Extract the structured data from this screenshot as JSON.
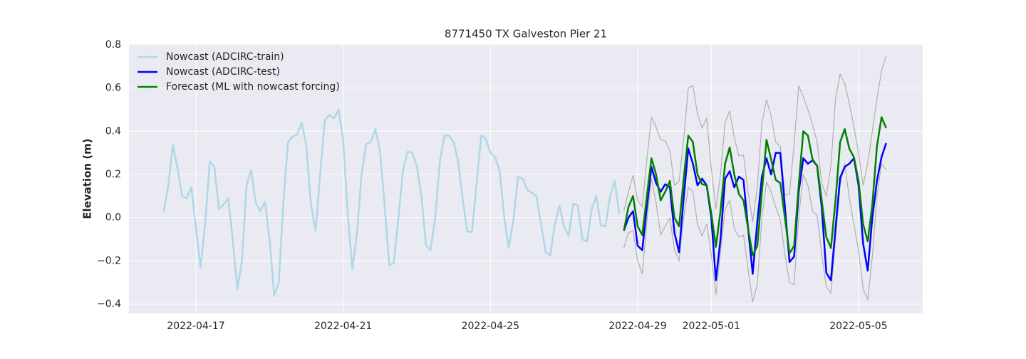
{
  "chart_data": {
    "type": "line",
    "title": "8771450 TX Galveston Pier 21",
    "ylabel": "Elevation (m)",
    "x": [
      "2022-04-16T03:00",
      "2022-04-16T06:00",
      "2022-04-16T09:00",
      "2022-04-16T12:00",
      "2022-04-16T15:00",
      "2022-04-16T18:00",
      "2022-04-16T21:00",
      "2022-04-17T00:00",
      "2022-04-17T03:00",
      "2022-04-17T06:00",
      "2022-04-17T09:00",
      "2022-04-17T12:00",
      "2022-04-17T15:00",
      "2022-04-17T18:00",
      "2022-04-17T21:00",
      "2022-04-18T00:00",
      "2022-04-18T03:00",
      "2022-04-18T06:00",
      "2022-04-18T09:00",
      "2022-04-18T12:00",
      "2022-04-18T15:00",
      "2022-04-18T18:00",
      "2022-04-18T21:00",
      "2022-04-19T00:00",
      "2022-04-19T03:00",
      "2022-04-19T06:00",
      "2022-04-19T09:00",
      "2022-04-19T12:00",
      "2022-04-19T15:00",
      "2022-04-19T18:00",
      "2022-04-19T21:00",
      "2022-04-20T00:00",
      "2022-04-20T03:00",
      "2022-04-20T06:00",
      "2022-04-20T09:00",
      "2022-04-20T12:00",
      "2022-04-20T15:00",
      "2022-04-20T18:00",
      "2022-04-20T21:00",
      "2022-04-21T00:00",
      "2022-04-21T03:00",
      "2022-04-21T06:00",
      "2022-04-21T09:00",
      "2022-04-21T12:00",
      "2022-04-21T15:00",
      "2022-04-21T18:00",
      "2022-04-21T21:00",
      "2022-04-22T00:00",
      "2022-04-22T03:00",
      "2022-04-22T06:00",
      "2022-04-22T09:00",
      "2022-04-22T12:00",
      "2022-04-22T15:00",
      "2022-04-22T18:00",
      "2022-04-22T21:00",
      "2022-04-23T00:00",
      "2022-04-23T03:00",
      "2022-04-23T06:00",
      "2022-04-23T09:00",
      "2022-04-23T12:00",
      "2022-04-23T15:00",
      "2022-04-23T18:00",
      "2022-04-23T21:00",
      "2022-04-24T00:00",
      "2022-04-24T03:00",
      "2022-04-24T06:00",
      "2022-04-24T09:00",
      "2022-04-24T12:00",
      "2022-04-24T15:00",
      "2022-04-24T18:00",
      "2022-04-24T21:00",
      "2022-04-25T00:00",
      "2022-04-25T03:00",
      "2022-04-25T06:00",
      "2022-04-25T09:00",
      "2022-04-25T12:00",
      "2022-04-25T15:00",
      "2022-04-25T18:00",
      "2022-04-25T21:00",
      "2022-04-26T00:00",
      "2022-04-26T03:00",
      "2022-04-26T06:00",
      "2022-04-26T09:00",
      "2022-04-26T12:00",
      "2022-04-26T15:00",
      "2022-04-26T18:00",
      "2022-04-26T21:00",
      "2022-04-27T00:00",
      "2022-04-27T03:00",
      "2022-04-27T06:00",
      "2022-04-27T09:00",
      "2022-04-27T12:00",
      "2022-04-27T15:00",
      "2022-04-27T18:00",
      "2022-04-27T21:00",
      "2022-04-28T00:00",
      "2022-04-28T03:00",
      "2022-04-28T06:00",
      "2022-04-28T09:00",
      "2022-04-28T12:00",
      "2022-04-28T15:00",
      "2022-04-28T18:00",
      "2022-04-28T21:00",
      "2022-04-29T00:00",
      "2022-04-29T03:00",
      "2022-04-29T06:00",
      "2022-04-29T09:00",
      "2022-04-29T12:00",
      "2022-04-29T15:00",
      "2022-04-29T18:00",
      "2022-04-29T21:00",
      "2022-04-30T00:00",
      "2022-04-30T03:00",
      "2022-04-30T06:00",
      "2022-04-30T09:00",
      "2022-04-30T12:00",
      "2022-04-30T15:00",
      "2022-04-30T18:00",
      "2022-04-30T21:00",
      "2022-05-01T00:00",
      "2022-05-01T03:00",
      "2022-05-01T06:00",
      "2022-05-01T09:00",
      "2022-05-01T12:00",
      "2022-05-01T15:00",
      "2022-05-01T18:00",
      "2022-05-01T21:00",
      "2022-05-02T00:00",
      "2022-05-02T03:00",
      "2022-05-02T06:00",
      "2022-05-02T09:00",
      "2022-05-02T12:00",
      "2022-05-02T15:00",
      "2022-05-02T18:00",
      "2022-05-02T21:00",
      "2022-05-03T00:00",
      "2022-05-03T03:00",
      "2022-05-03T06:00",
      "2022-05-03T09:00",
      "2022-05-03T12:00",
      "2022-05-03T15:00",
      "2022-05-03T18:00",
      "2022-05-03T21:00",
      "2022-05-04T00:00",
      "2022-05-04T03:00",
      "2022-05-04T06:00",
      "2022-05-04T09:00",
      "2022-05-04T12:00",
      "2022-05-04T15:00",
      "2022-05-04T18:00",
      "2022-05-04T21:00",
      "2022-05-05T00:00",
      "2022-05-05T03:00",
      "2022-05-05T06:00",
      "2022-05-05T09:00",
      "2022-05-05T12:00",
      "2022-05-05T15:00",
      "2022-05-05T18:00"
    ],
    "series": [
      {
        "color": "#b0b0b0",
        "values": [
          null,
          null,
          null,
          null,
          null,
          null,
          null,
          null,
          null,
          null,
          null,
          null,
          null,
          null,
          null,
          null,
          null,
          null,
          null,
          null,
          null,
          null,
          null,
          null,
          null,
          null,
          null,
          null,
          null,
          null,
          null,
          null,
          null,
          null,
          null,
          null,
          null,
          null,
          null,
          null,
          null,
          null,
          null,
          null,
          null,
          null,
          null,
          null,
          null,
          null,
          null,
          null,
          null,
          null,
          null,
          null,
          null,
          null,
          null,
          null,
          null,
          null,
          null,
          null,
          null,
          null,
          null,
          null,
          null,
          null,
          null,
          null,
          null,
          null,
          null,
          null,
          null,
          null,
          null,
          null,
          null,
          null,
          null,
          null,
          null,
          null,
          null,
          null,
          null,
          null,
          null,
          null,
          null,
          null,
          null,
          null,
          null,
          null,
          null,
          null,
          0.03,
          0.12,
          0.195,
          0.08,
          0.05,
          0.27,
          0.465,
          0.42,
          0.36,
          0.355,
          0.31,
          0.15,
          0.17,
          0.36,
          0.6,
          0.61,
          0.48,
          0.415,
          0.46,
          0.23,
          0.04,
          0.2,
          0.44,
          0.495,
          0.37,
          0.285,
          0.29,
          0.12,
          -0.02,
          0.14,
          0.44,
          0.545,
          0.47,
          0.35,
          0.33,
          0.105,
          0.11,
          0.34,
          0.61,
          0.56,
          0.5,
          0.43,
          0.35,
          0.16,
          0.1,
          0.24,
          0.55,
          0.665,
          0.62,
          0.53,
          0.42,
          0.3,
          0.15,
          0.25,
          0.4,
          0.55,
          0.68,
          0.75
        ]
      },
      {
        "color": "#b0b0b0",
        "values": [
          null,
          null,
          null,
          null,
          null,
          null,
          null,
          null,
          null,
          null,
          null,
          null,
          null,
          null,
          null,
          null,
          null,
          null,
          null,
          null,
          null,
          null,
          null,
          null,
          null,
          null,
          null,
          null,
          null,
          null,
          null,
          null,
          null,
          null,
          null,
          null,
          null,
          null,
          null,
          null,
          null,
          null,
          null,
          null,
          null,
          null,
          null,
          null,
          null,
          null,
          null,
          null,
          null,
          null,
          null,
          null,
          null,
          null,
          null,
          null,
          null,
          null,
          null,
          null,
          null,
          null,
          null,
          null,
          null,
          null,
          null,
          null,
          null,
          null,
          null,
          null,
          null,
          null,
          null,
          null,
          null,
          null,
          null,
          null,
          null,
          null,
          null,
          null,
          null,
          null,
          null,
          null,
          null,
          null,
          null,
          null,
          null,
          null,
          null,
          null,
          -0.14,
          -0.07,
          -0.06,
          -0.2,
          -0.26,
          -0.02,
          0.18,
          0.07,
          -0.08,
          -0.04,
          0.0,
          -0.15,
          -0.2,
          0.0,
          0.14,
          0.12,
          -0.03,
          -0.085,
          -0.03,
          -0.17,
          -0.355,
          -0.16,
          0.04,
          0.08,
          -0.05,
          -0.09,
          -0.08,
          -0.24,
          -0.39,
          -0.31,
          0.0,
          0.165,
          0.12,
          0.05,
          -0.01,
          -0.17,
          -0.3,
          -0.31,
          0.0,
          0.2,
          0.15,
          0.03,
          0.01,
          -0.17,
          -0.32,
          -0.35,
          -0.1,
          0.15,
          0.25,
          0.09,
          -0.03,
          -0.15,
          -0.33,
          -0.38,
          -0.18,
          0.1,
          0.25,
          0.22
        ]
      },
      {
        "name": "Nowcast (ADCIRC-train)",
        "color": "#add8e6",
        "values": [
          0.03,
          0.15,
          0.335,
          0.23,
          0.1,
          0.09,
          0.14,
          -0.05,
          -0.23,
          -0.03,
          0.26,
          0.235,
          0.04,
          0.06,
          0.09,
          -0.1,
          -0.33,
          -0.2,
          0.15,
          0.22,
          0.07,
          0.03,
          0.075,
          -0.1,
          -0.36,
          -0.3,
          0.07,
          0.35,
          0.375,
          0.385,
          0.44,
          0.33,
          0.06,
          -0.06,
          0.2,
          0.45,
          0.475,
          0.46,
          0.5,
          0.36,
          0.02,
          -0.24,
          -0.07,
          0.2,
          0.34,
          0.35,
          0.41,
          0.31,
          0.06,
          -0.22,
          -0.21,
          0.0,
          0.22,
          0.305,
          0.3,
          0.24,
          0.1,
          -0.13,
          -0.15,
          0.0,
          0.26,
          0.38,
          0.38,
          0.35,
          0.26,
          0.08,
          -0.065,
          -0.065,
          0.16,
          0.38,
          0.365,
          0.3,
          0.28,
          0.22,
          0.0,
          -0.14,
          -0.01,
          0.19,
          0.18,
          0.13,
          0.115,
          0.1,
          -0.03,
          -0.16,
          -0.175,
          -0.03,
          0.055,
          -0.04,
          -0.085,
          0.065,
          0.055,
          -0.1,
          -0.11,
          0.04,
          0.1,
          -0.035,
          -0.04,
          0.1,
          0.17,
          0.02,
          null,
          null,
          null,
          null,
          null,
          null,
          null,
          null,
          null,
          null,
          null,
          null,
          null,
          null,
          null,
          null,
          null,
          null,
          null,
          null,
          null,
          null,
          null,
          null,
          null,
          null,
          null,
          null,
          null,
          null,
          null,
          null,
          null,
          null,
          null,
          null,
          null,
          null,
          null,
          null,
          null,
          null,
          null,
          null,
          null,
          null,
          null,
          null,
          null,
          null,
          null,
          null,
          null,
          null,
          null,
          null,
          null,
          null
        ]
      },
      {
        "name": "Nowcast (ADCIRC-test)",
        "color": "#0000ff",
        "values": [
          null,
          null,
          null,
          null,
          null,
          null,
          null,
          null,
          null,
          null,
          null,
          null,
          null,
          null,
          null,
          null,
          null,
          null,
          null,
          null,
          null,
          null,
          null,
          null,
          null,
          null,
          null,
          null,
          null,
          null,
          null,
          null,
          null,
          null,
          null,
          null,
          null,
          null,
          null,
          null,
          null,
          null,
          null,
          null,
          null,
          null,
          null,
          null,
          null,
          null,
          null,
          null,
          null,
          null,
          null,
          null,
          null,
          null,
          null,
          null,
          null,
          null,
          null,
          null,
          null,
          null,
          null,
          null,
          null,
          null,
          null,
          null,
          null,
          null,
          null,
          null,
          null,
          null,
          null,
          null,
          null,
          null,
          null,
          null,
          null,
          null,
          null,
          null,
          null,
          null,
          null,
          null,
          null,
          null,
          null,
          null,
          null,
          null,
          null,
          null,
          -0.06,
          0.0,
          0.03,
          -0.13,
          -0.15,
          0.05,
          0.235,
          0.16,
          0.12,
          0.155,
          0.14,
          -0.07,
          -0.16,
          0.09,
          0.32,
          0.25,
          0.15,
          0.18,
          0.15,
          0.0,
          -0.29,
          -0.1,
          0.18,
          0.215,
          0.14,
          0.19,
          0.175,
          -0.05,
          -0.26,
          -0.02,
          0.19,
          0.275,
          0.2,
          0.3,
          0.3,
          0.05,
          -0.205,
          -0.18,
          0.12,
          0.275,
          0.25,
          0.265,
          0.24,
          0.05,
          -0.255,
          -0.29,
          -0.05,
          0.185,
          0.235,
          0.25,
          0.275,
          0.15,
          -0.12,
          -0.245,
          0.0,
          0.17,
          0.28,
          0.345
        ]
      },
      {
        "name": "Forecast (ML with nowcast forcing)",
        "color": "#008000",
        "values": [
          null,
          null,
          null,
          null,
          null,
          null,
          null,
          null,
          null,
          null,
          null,
          null,
          null,
          null,
          null,
          null,
          null,
          null,
          null,
          null,
          null,
          null,
          null,
          null,
          null,
          null,
          null,
          null,
          null,
          null,
          null,
          null,
          null,
          null,
          null,
          null,
          null,
          null,
          null,
          null,
          null,
          null,
          null,
          null,
          null,
          null,
          null,
          null,
          null,
          null,
          null,
          null,
          null,
          null,
          null,
          null,
          null,
          null,
          null,
          null,
          null,
          null,
          null,
          null,
          null,
          null,
          null,
          null,
          null,
          null,
          null,
          null,
          null,
          null,
          null,
          null,
          null,
          null,
          null,
          null,
          null,
          null,
          null,
          null,
          null,
          null,
          null,
          null,
          null,
          null,
          null,
          null,
          null,
          null,
          null,
          null,
          null,
          null,
          null,
          null,
          -0.06,
          0.05,
          0.1,
          -0.04,
          -0.08,
          0.1,
          0.275,
          0.2,
          0.08,
          0.12,
          0.17,
          0.0,
          -0.04,
          0.18,
          0.38,
          0.35,
          0.2,
          0.155,
          0.15,
          0.02,
          -0.135,
          0.03,
          0.25,
          0.325,
          0.2,
          0.11,
          0.08,
          -0.05,
          -0.175,
          -0.13,
          0.12,
          0.36,
          0.27,
          0.175,
          0.16,
          0.0,
          -0.165,
          -0.13,
          0.15,
          0.4,
          0.38,
          0.27,
          0.24,
          0.08,
          -0.09,
          -0.14,
          0.08,
          0.35,
          0.41,
          0.32,
          0.28,
          0.17,
          -0.03,
          -0.11,
          0.06,
          0.33,
          0.465,
          0.415
        ]
      }
    ],
    "xlim": [
      "2022-04-15T04:20",
      "2022-05-06T17:50"
    ],
    "xticks": [
      "2022-04-17",
      "2022-04-21",
      "2022-04-25",
      "2022-04-29",
      "2022-05-01",
      "2022-05-05"
    ],
    "ylim": [
      -0.443,
      0.803
    ],
    "yticks": [
      {
        "value": -0.4,
        "label": "−0.4"
      },
      {
        "value": -0.2,
        "label": "−0.2"
      },
      {
        "value": 0,
        "label": "0.0"
      },
      0.2,
      0.4,
      0.6,
      0.8
    ],
    "grid": true,
    "legend": "upper left"
  }
}
